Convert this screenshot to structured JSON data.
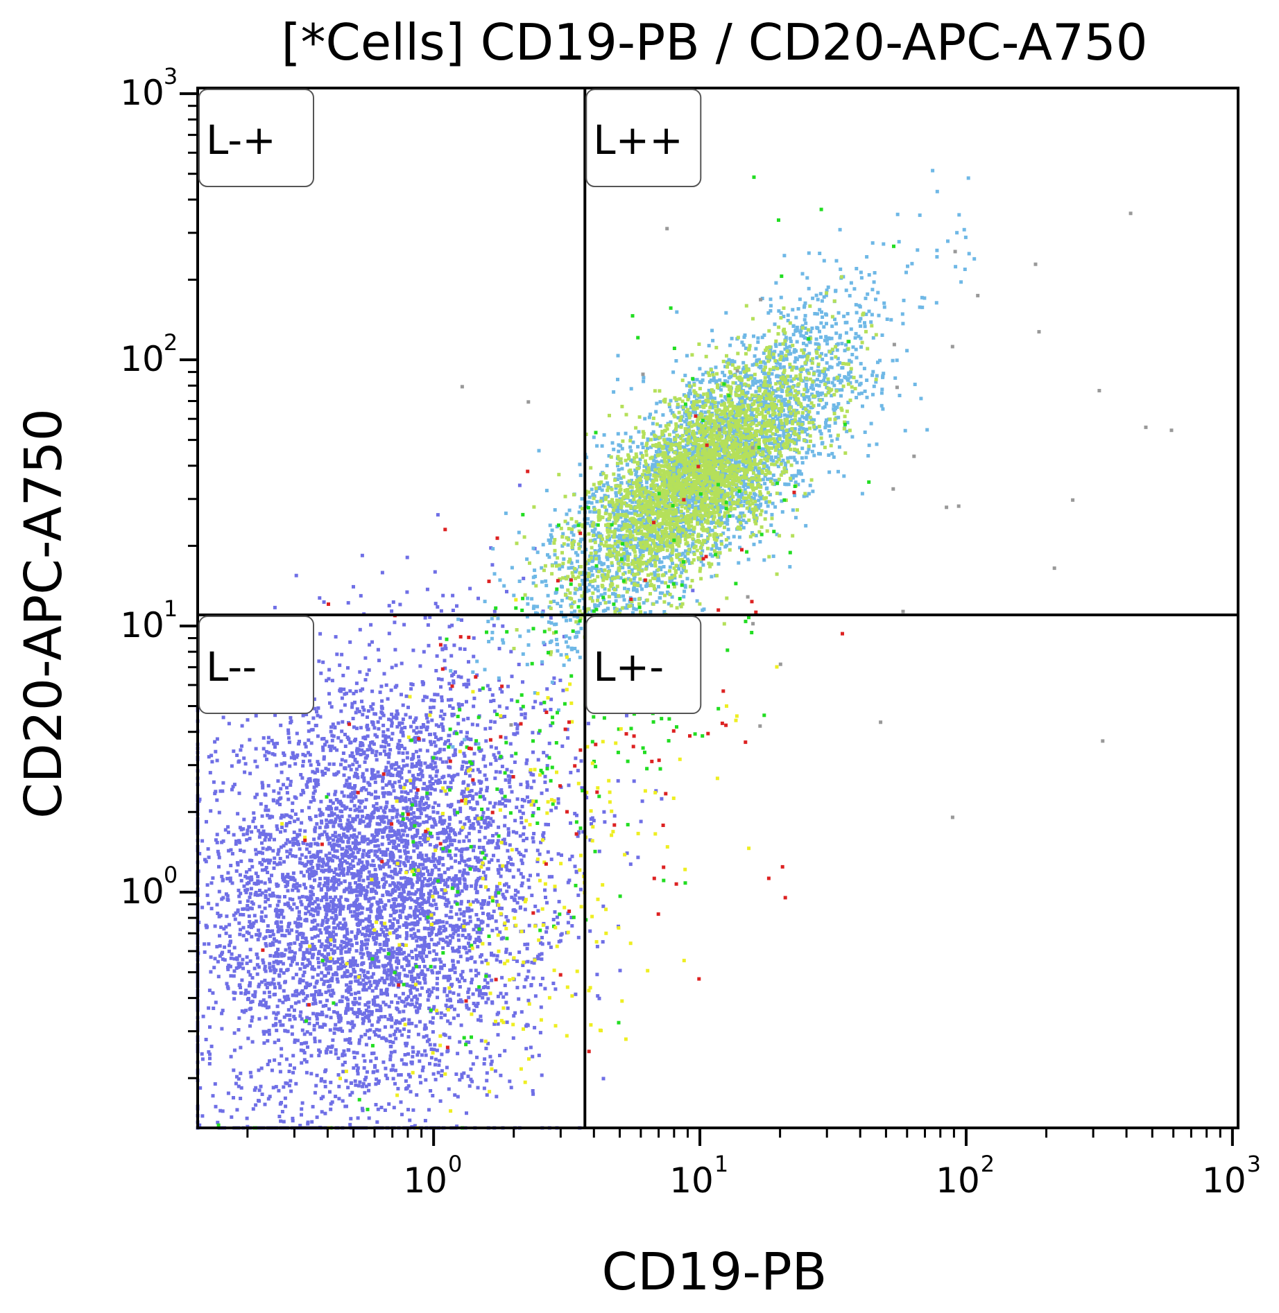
{
  "chart_data": {
    "type": "scatter",
    "title": "[*Cells] CD19-PB / CD20-APC-A750",
    "xlabel": "CD19-PB",
    "ylabel": "CD20-APC-A750",
    "x_scale": "log",
    "y_scale": "log",
    "xlim": [
      0.13,
      1050
    ],
    "ylim": [
      0.13,
      1050
    ],
    "x_ticks": [
      {
        "base": "10",
        "exp": "0",
        "value": 1
      },
      {
        "base": "10",
        "exp": "1",
        "value": 10
      },
      {
        "base": "10",
        "exp": "2",
        "value": 100
      },
      {
        "base": "10",
        "exp": "3",
        "value": 1000
      }
    ],
    "y_ticks": [
      {
        "base": "10",
        "exp": "0",
        "value": 1
      },
      {
        "base": "10",
        "exp": "1",
        "value": 10
      },
      {
        "base": "10",
        "exp": "2",
        "value": 100
      },
      {
        "base": "10",
        "exp": "3",
        "value": 1000
      }
    ],
    "quadrant_gate": {
      "x": 3.7,
      "y": 11
    },
    "quadrants": [
      {
        "label": "L-+",
        "position": "top-left"
      },
      {
        "label": "L++",
        "position": "top-right"
      },
      {
        "label": "L--",
        "position": "bottom-left"
      },
      {
        "label": "L+-",
        "position": "bottom-right"
      }
    ],
    "grid": false,
    "populations": [
      {
        "color": "#6f6fe6",
        "center": [
          0.6,
          1.0
        ],
        "spread": [
          0.33,
          0.42
        ],
        "correlation": 0.15,
        "count": 5200
      },
      {
        "color": "#6fb8e6",
        "center": [
          11,
          40
        ],
        "spread": [
          0.3,
          0.3
        ],
        "correlation": 0.8,
        "count": 3300
      },
      {
        "color": "#b5e05a",
        "center": [
          10,
          37
        ],
        "spread": [
          0.22,
          0.22
        ],
        "correlation": 0.7,
        "count": 2600
      },
      {
        "color": "#22dd22",
        "center": [
          3.0,
          4.0
        ],
        "spread": [
          0.45,
          0.7
        ],
        "correlation": 0.75,
        "count": 240
      },
      {
        "color": "#eeee22",
        "center": [
          2.2,
          1.1
        ],
        "spread": [
          0.35,
          0.4
        ],
        "correlation": 0.25,
        "count": 210
      },
      {
        "color": "#dd2222",
        "center": [
          3.5,
          5.0
        ],
        "spread": [
          0.45,
          0.55
        ],
        "correlation": 0.4,
        "count": 110
      },
      {
        "color": "#999999",
        "center": [
          40,
          40
        ],
        "spread": [
          0.6,
          0.6
        ],
        "correlation": 0.2,
        "count": 35
      }
    ]
  }
}
